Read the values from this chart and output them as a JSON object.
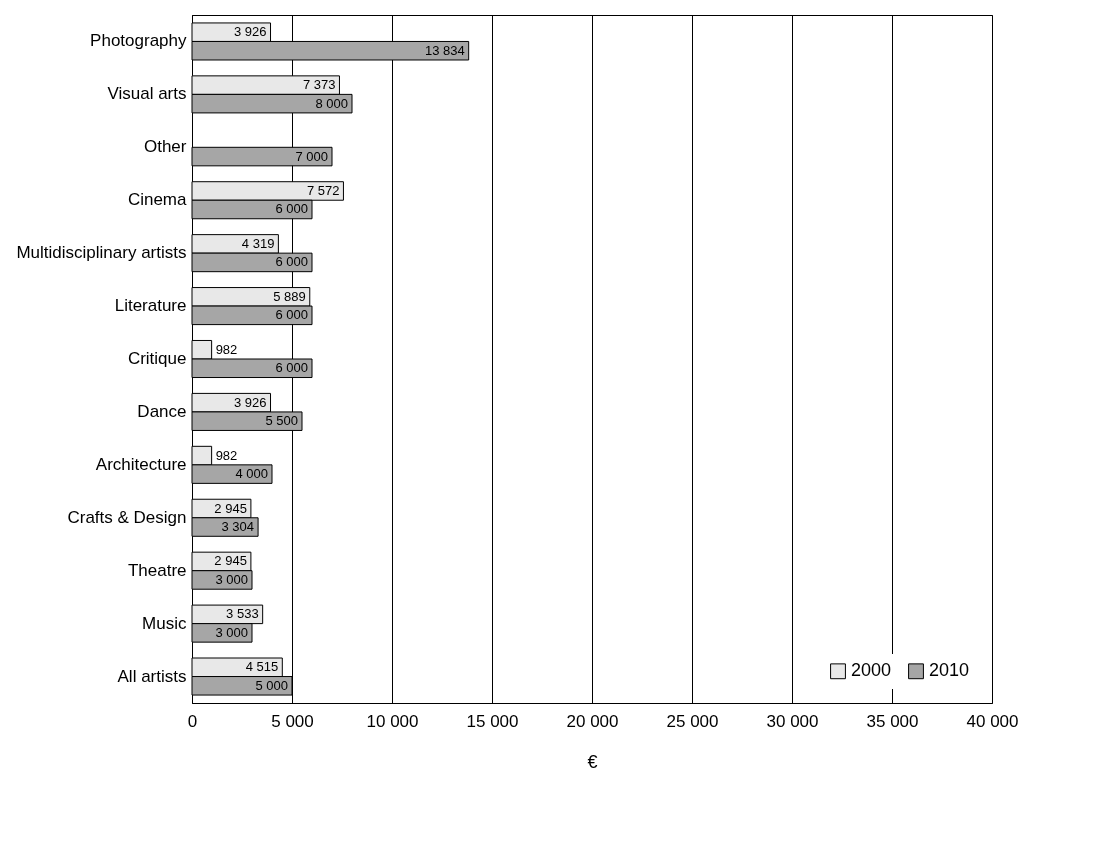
{
  "chart_data": {
    "type": "bar",
    "orientation": "horizontal",
    "xlabel": "€",
    "categories": [
      "Photography",
      "Visual arts",
      "Other",
      "Cinema",
      "Multidisciplinary artists",
      "Literature",
      "Critique",
      "Dance",
      "Architecture",
      "Crafts & Design",
      "Theatre",
      "Music",
      "All artists"
    ],
    "series": [
      {
        "name": "2000",
        "color": "#e8e8e8",
        "values": [
          3926,
          7373,
          null,
          7572,
          4319,
          5889,
          982,
          3926,
          982,
          2945,
          2945,
          3533,
          4515
        ],
        "value_labels": [
          "3 926",
          "7 373",
          null,
          "7 572",
          "4 319",
          "5 889",
          "982",
          "3 926",
          "982",
          "2 945",
          "2 945",
          "3 533",
          "4 515"
        ]
      },
      {
        "name": "2010",
        "color": "#a6a6a6",
        "values": [
          13834,
          8000,
          7000,
          6000,
          6000,
          6000,
          6000,
          5500,
          4000,
          3304,
          3000,
          3000,
          5000
        ],
        "value_labels": [
          "13 834",
          "8 000",
          "7 000",
          "6 000",
          "6 000",
          "6 000",
          "6 000",
          "5 500",
          "4 000",
          "3 304",
          "3 000",
          "3 000",
          "5 000"
        ]
      }
    ],
    "xlim": [
      0,
      40000
    ],
    "xticks": [
      0,
      {
        "value": 5000,
        "label": "5 000"
      },
      {
        "value": 10000,
        "label": "10 000"
      },
      {
        "value": 15000,
        "label": "15 000"
      },
      {
        "value": 20000,
        "label": "20 000"
      },
      {
        "value": 25000,
        "label": "25 000"
      },
      {
        "value": 30000,
        "label": "30 000"
      },
      {
        "value": 35000,
        "label": "35 000"
      },
      {
        "value": 40000,
        "label": "40 000"
      }
    ],
    "grid": "x",
    "legend": "bottom right"
  }
}
